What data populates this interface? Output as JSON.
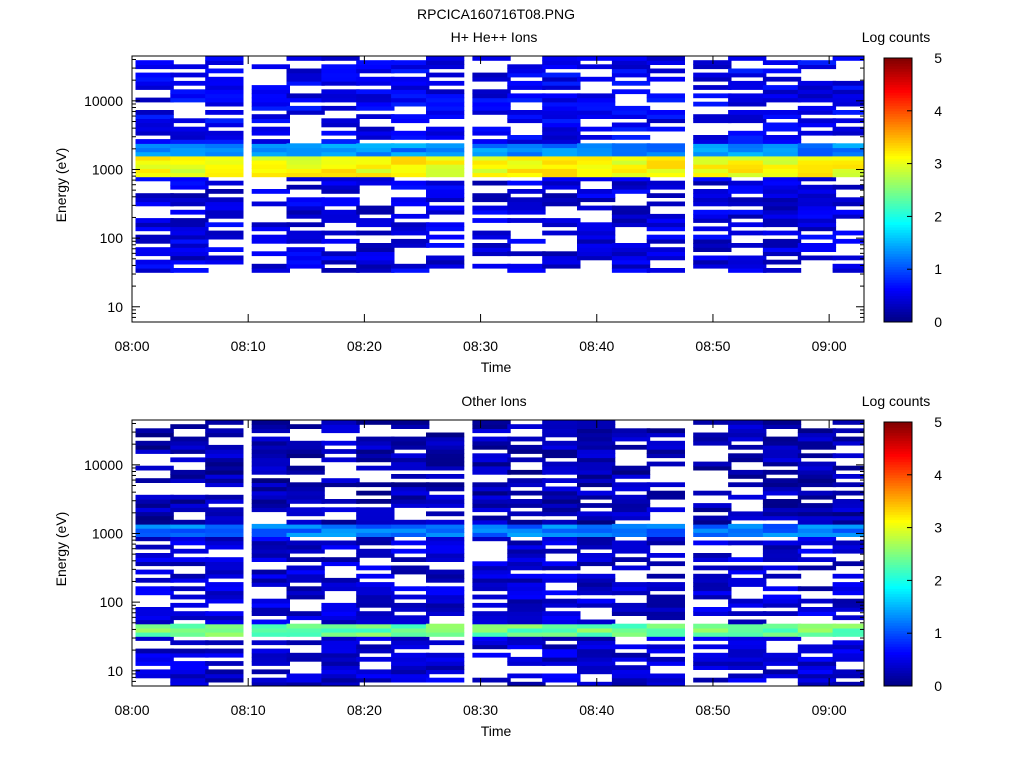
{
  "figure_title": "RPCICA160716T08.PNG",
  "chart_data": [
    {
      "type": "heatmap",
      "title": "H+ He++ Ions",
      "xlabel": "Time",
      "ylabel": "Energy (eV)",
      "x_scale": "time",
      "x_range": [
        "08:00",
        "09:03"
      ],
      "x_ticks": [
        "08:00",
        "08:10",
        "08:20",
        "08:30",
        "08:40",
        "08:50",
        "09:00"
      ],
      "y_scale": "log",
      "y_range": [
        6,
        45000
      ],
      "y_ticks": [
        10,
        100,
        1000,
        10000
      ],
      "y_tick_labels": [
        "10",
        "100",
        "1000",
        "10000"
      ],
      "colorbar": {
        "label": "Log counts",
        "range": [
          0,
          5
        ],
        "ticks": [
          "0",
          "1",
          "2",
          "3",
          "4",
          "5"
        ],
        "colormap": "jet"
      },
      "time_columns": [
        "08:02",
        "08:05",
        "08:08",
        "08:12",
        "08:15",
        "08:18",
        "08:21",
        "08:24",
        "08:27",
        "08:31",
        "08:34",
        "08:37",
        "08:40",
        "08:43",
        "08:46",
        "08:50",
        "08:53",
        "08:56",
        "08:59",
        "09:02"
      ],
      "bands": [
        {
          "energy_from": 800,
          "energy_to": 1500,
          "log_counts": 3.1,
          "note_shown": false
        },
        {
          "energy_from": 1500,
          "energy_to": 2400,
          "log_counts": 1.3
        },
        {
          "energy_from": 2400,
          "energy_to": 45000,
          "log_counts": 0.45
        },
        {
          "energy_from": 30,
          "energy_to": 800,
          "log_counts": 0.35
        }
      ],
      "grid": false,
      "legend": "colorbar-right"
    },
    {
      "type": "heatmap",
      "title": "Other Ions",
      "xlabel": "Time",
      "ylabel": "Energy (eV)",
      "x_scale": "time",
      "x_range": [
        "08:00",
        "09:03"
      ],
      "x_ticks": [
        "08:00",
        "08:10",
        "08:20",
        "08:30",
        "08:40",
        "08:50",
        "09:00"
      ],
      "y_scale": "log",
      "y_range": [
        6,
        45000
      ],
      "y_ticks": [
        10,
        100,
        1000,
        10000
      ],
      "y_tick_labels": [
        "10",
        "100",
        "1000",
        "10000"
      ],
      "colorbar": {
        "label": "Log counts",
        "range": [
          0,
          5
        ],
        "ticks": [
          "0",
          "1",
          "2",
          "3",
          "4",
          "5"
        ],
        "colormap": "jet"
      },
      "time_columns": [
        "08:02",
        "08:05",
        "08:08",
        "08:12",
        "08:15",
        "08:18",
        "08:21",
        "08:24",
        "08:27",
        "08:31",
        "08:34",
        "08:37",
        "08:40",
        "08:43",
        "08:46",
        "08:50",
        "08:53",
        "08:56",
        "08:59",
        "09:02"
      ],
      "bands": [
        {
          "energy_from": 30,
          "energy_to": 50,
          "log_counts": 2.4
        },
        {
          "energy_from": 900,
          "energy_to": 1400,
          "log_counts": 1.2
        },
        {
          "energy_from": 6,
          "energy_to": 900,
          "log_counts": 0.3
        },
        {
          "energy_from": 1400,
          "energy_to": 45000,
          "log_counts": 0.15
        }
      ],
      "grid": false,
      "legend": "colorbar-right"
    }
  ]
}
